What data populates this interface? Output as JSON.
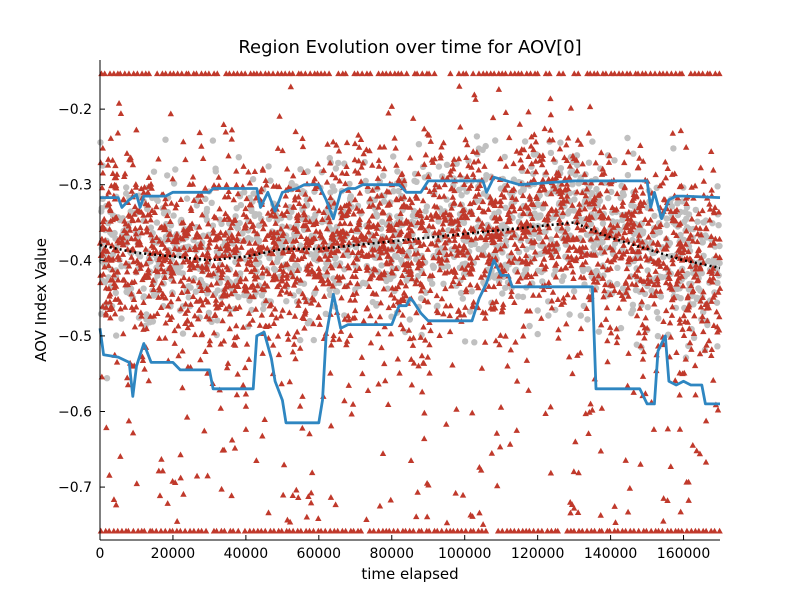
{
  "chart_data": {
    "type": "scatter",
    "title": "Region Evolution over time for AOV[0]",
    "xlabel": "time elapsed",
    "ylabel": "AOV Index Value",
    "xlim": [
      0,
      170000
    ],
    "ylim": [
      -0.77,
      -0.135
    ],
    "x_ticks": [
      0,
      20000,
      40000,
      60000,
      80000,
      100000,
      120000,
      140000,
      160000
    ],
    "x_tick_labels": [
      "0",
      "20000",
      "40000",
      "60000",
      "80000",
      "100000",
      "120000",
      "140000",
      "160000"
    ],
    "y_ticks": [
      -0.2,
      -0.3,
      -0.4,
      -0.5,
      -0.6,
      -0.7
    ],
    "y_tick_labels": [
      "−0.2",
      "−0.3",
      "−0.4",
      "−0.5",
      "−0.6",
      "−0.7"
    ],
    "grid": false,
    "colors": {
      "scatter_gray": "#c0c0c0",
      "triangle_red": "#c0392b",
      "bound_blue": "#2e86c1",
      "mean_black": "#000000"
    },
    "series": [
      {
        "kind": "upper_bound_line",
        "color": "#2e86c1",
        "points": [
          [
            0,
            -0.317
          ],
          [
            5000,
            -0.317
          ],
          [
            6000,
            -0.33
          ],
          [
            8000,
            -0.32
          ],
          [
            10000,
            -0.313
          ],
          [
            11000,
            -0.33
          ],
          [
            12000,
            -0.315
          ],
          [
            18000,
            -0.315
          ],
          [
            20000,
            -0.31
          ],
          [
            30000,
            -0.31
          ],
          [
            31000,
            -0.305
          ],
          [
            43000,
            -0.305
          ],
          [
            44000,
            -0.33
          ],
          [
            46000,
            -0.31
          ],
          [
            48000,
            -0.335
          ],
          [
            50000,
            -0.31
          ],
          [
            54000,
            -0.305
          ],
          [
            56000,
            -0.3
          ],
          [
            60000,
            -0.3
          ],
          [
            62000,
            -0.32
          ],
          [
            64000,
            -0.345
          ],
          [
            66000,
            -0.31
          ],
          [
            68000,
            -0.305
          ],
          [
            70000,
            -0.305
          ],
          [
            72000,
            -0.3
          ],
          [
            82000,
            -0.3
          ],
          [
            84000,
            -0.31
          ],
          [
            88000,
            -0.31
          ],
          [
            90000,
            -0.295
          ],
          [
            105000,
            -0.295
          ],
          [
            106000,
            -0.31
          ],
          [
            108000,
            -0.29
          ],
          [
            115000,
            -0.3
          ],
          [
            130000,
            -0.295
          ],
          [
            135000,
            -0.295
          ],
          [
            136000,
            -0.295
          ],
          [
            150000,
            -0.295
          ],
          [
            151000,
            -0.33
          ],
          [
            152000,
            -0.31
          ],
          [
            154000,
            -0.345
          ],
          [
            156000,
            -0.32
          ],
          [
            158000,
            -0.315
          ],
          [
            160000,
            -0.315
          ],
          [
            170000,
            -0.317
          ]
        ]
      },
      {
        "kind": "lower_bound_line",
        "color": "#2e86c1",
        "points": [
          [
            0,
            -0.49
          ],
          [
            1000,
            -0.525
          ],
          [
            5000,
            -0.528
          ],
          [
            8000,
            -0.535
          ],
          [
            9000,
            -0.58
          ],
          [
            10000,
            -0.54
          ],
          [
            12000,
            -0.51
          ],
          [
            14000,
            -0.535
          ],
          [
            20000,
            -0.535
          ],
          [
            22000,
            -0.545
          ],
          [
            30000,
            -0.545
          ],
          [
            31000,
            -0.57
          ],
          [
            40000,
            -0.57
          ],
          [
            42000,
            -0.57
          ],
          [
            43000,
            -0.5
          ],
          [
            45000,
            -0.495
          ],
          [
            47000,
            -0.53
          ],
          [
            48000,
            -0.56
          ],
          [
            50000,
            -0.585
          ],
          [
            51000,
            -0.615
          ],
          [
            60000,
            -0.615
          ],
          [
            61000,
            -0.585
          ],
          [
            62000,
            -0.5
          ],
          [
            64000,
            -0.445
          ],
          [
            66000,
            -0.49
          ],
          [
            68000,
            -0.485
          ],
          [
            75000,
            -0.485
          ],
          [
            80000,
            -0.485
          ],
          [
            82000,
            -0.46
          ],
          [
            84000,
            -0.46
          ],
          [
            85000,
            -0.45
          ],
          [
            86000,
            -0.455
          ],
          [
            88000,
            -0.47
          ],
          [
            90000,
            -0.48
          ],
          [
            95000,
            -0.48
          ],
          [
            102000,
            -0.48
          ],
          [
            104000,
            -0.45
          ],
          [
            106000,
            -0.43
          ],
          [
            108000,
            -0.4
          ],
          [
            110000,
            -0.42
          ],
          [
            112000,
            -0.42
          ],
          [
            113000,
            -0.435
          ],
          [
            125000,
            -0.435
          ],
          [
            128000,
            -0.435
          ],
          [
            135000,
            -0.435
          ],
          [
            136000,
            -0.57
          ],
          [
            148000,
            -0.57
          ],
          [
            150000,
            -0.59
          ],
          [
            152000,
            -0.59
          ],
          [
            153000,
            -0.52
          ],
          [
            155000,
            -0.5
          ],
          [
            156000,
            -0.56
          ],
          [
            158000,
            -0.565
          ],
          [
            160000,
            -0.56
          ],
          [
            162000,
            -0.565
          ],
          [
            165000,
            -0.565
          ],
          [
            166000,
            -0.59
          ],
          [
            170000,
            -0.59
          ]
        ]
      },
      {
        "kind": "mean_dotted_line",
        "color": "#000000",
        "points": [
          [
            0,
            -0.38
          ],
          [
            10000,
            -0.39
          ],
          [
            20000,
            -0.395
          ],
          [
            30000,
            -0.4
          ],
          [
            40000,
            -0.395
          ],
          [
            50000,
            -0.385
          ],
          [
            60000,
            -0.385
          ],
          [
            70000,
            -0.38
          ],
          [
            80000,
            -0.375
          ],
          [
            90000,
            -0.37
          ],
          [
            100000,
            -0.365
          ],
          [
            110000,
            -0.36
          ],
          [
            120000,
            -0.355
          ],
          [
            130000,
            -0.35
          ],
          [
            140000,
            -0.37
          ],
          [
            150000,
            -0.385
          ],
          [
            160000,
            -0.4
          ],
          [
            170000,
            -0.41
          ]
        ]
      }
    ],
    "triangle_bands": [
      {
        "description": "saturated top row",
        "y": -0.153,
        "x_range": [
          0,
          170000
        ]
      },
      {
        "description": "saturated bottom row",
        "y": -0.758,
        "x_range": [
          0,
          170000
        ]
      }
    ]
  }
}
